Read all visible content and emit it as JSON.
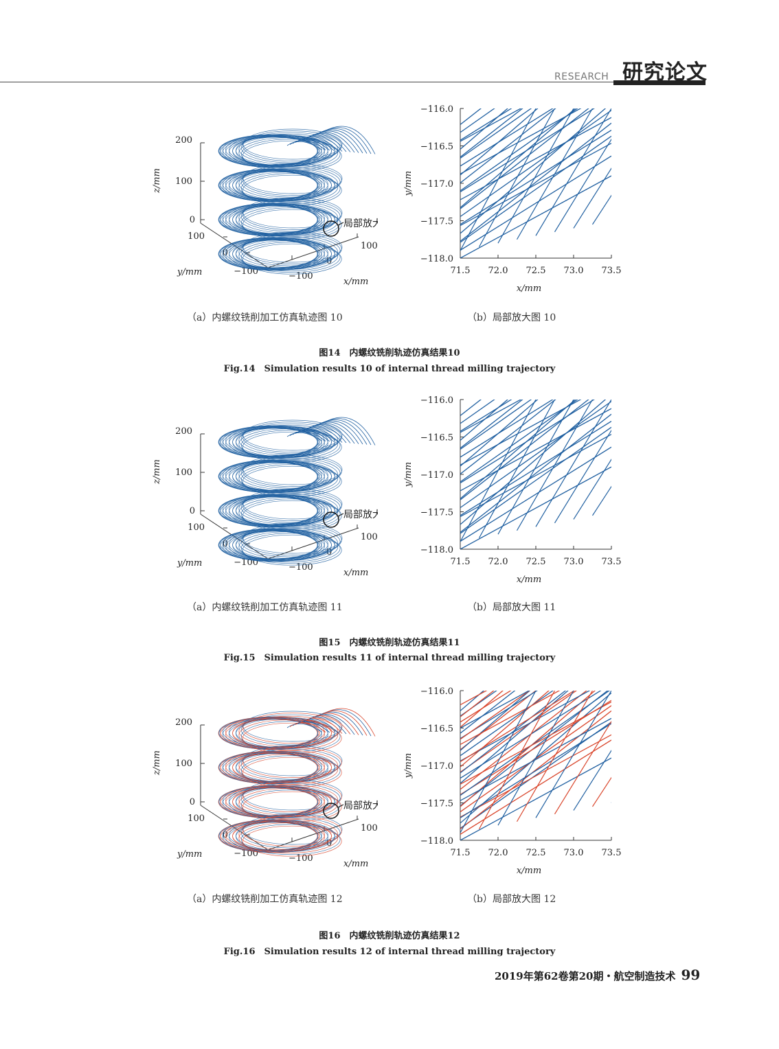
{
  "header": {
    "en": "RESEARCH",
    "cn": "研究论文"
  },
  "labels": {
    "z_axis": "z/mm",
    "y_axis": "y/mm",
    "x_axis": "x/mm",
    "zoom_label": "局部放大",
    "z_ticks": [
      "200",
      "100",
      "0"
    ],
    "y_ticks": [
      "100",
      "0",
      "−100"
    ],
    "x_ticks": [
      "−100",
      "0",
      "100"
    ],
    "zoom_y_ticks": [
      "−116.0",
      "−116.5",
      "−117.0",
      "−117.5",
      "−118.0"
    ],
    "zoom_x_ticks": [
      "71.5",
      "72.0",
      "72.5",
      "73.0",
      "73.5"
    ]
  },
  "figures": [
    {
      "sub_a": "（a）内螺纹铣削加工仿真轨迹图 10",
      "sub_b": "（b）局部放大图 10",
      "cap_cn": "图14　内螺纹铣削轨迹仿真结果10",
      "cap_en": "Fig.14　Simulation results 10 of internal thread milling trajectory"
    },
    {
      "sub_a": "（a）内螺纹铣削加工仿真轨迹图 11",
      "sub_b": "（b）局部放大图 11",
      "cap_cn": "图15　内螺纹铣削轨迹仿真结果11",
      "cap_en": "Fig.15　Simulation results 11 of internal thread milling trajectory"
    },
    {
      "sub_a": "（a）内螺纹铣削加工仿真轨迹图 12",
      "sub_b": "（b）局部放大图 12",
      "cap_cn": "图16　内螺纹铣削轨迹仿真结果12",
      "cap_en": "Fig.16　Simulation results 12 of internal thread milling trajectory"
    }
  ],
  "chart_data": [
    {
      "type": "line",
      "series_colors": [
        "#1f5fa0"
      ],
      "xlim": [
        71.5,
        73.5
      ],
      "ylim": [
        -118.0,
        -116.0
      ],
      "xlabel": "x/mm",
      "ylabel": "y/mm"
    },
    {
      "type": "line",
      "series_colors": [
        "#1f5fa0"
      ],
      "xlim": [
        71.5,
        73.5
      ],
      "ylim": [
        -118.0,
        -116.0
      ],
      "xlabel": "x/mm",
      "ylabel": "y/mm"
    },
    {
      "type": "line",
      "series_colors": [
        "#1f5fa0",
        "#d9452b"
      ],
      "xlim": [
        71.5,
        73.5
      ],
      "ylim": [
        -118.0,
        -116.0
      ],
      "xlabel": "x/mm",
      "ylabel": "y/mm"
    }
  ],
  "footer": {
    "text": "2019年第62卷第20期・航空制造技术",
    "page": "99"
  }
}
